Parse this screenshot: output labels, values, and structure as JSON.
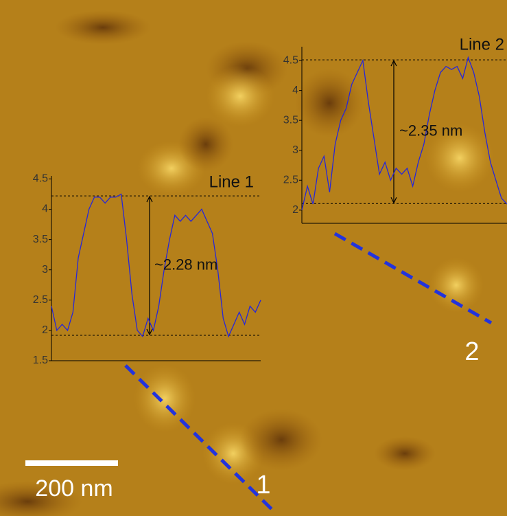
{
  "image": {
    "scale_bar": "200 nm",
    "line_labels": [
      "1",
      "2"
    ]
  },
  "chart_data": [
    {
      "type": "line",
      "title": "Line 1",
      "annotation": "~2.28 nm",
      "color": "#2626d9",
      "ylim": [
        1.5,
        4.55
      ],
      "yticks": [
        1.5,
        2.0,
        2.5,
        3.0,
        3.5,
        4.0,
        4.5
      ],
      "hlines": [
        4.22,
        1.92
      ],
      "values": [
        2.4,
        2.0,
        2.1,
        2.0,
        2.3,
        3.2,
        3.6,
        4.0,
        4.2,
        4.2,
        4.1,
        4.2,
        4.2,
        4.25,
        3.5,
        2.6,
        2.0,
        1.9,
        2.2,
        2.0,
        2.4,
        3.0,
        3.5,
        3.9,
        3.8,
        3.9,
        3.8,
        3.9,
        4.0,
        3.8,
        3.6,
        3.0,
        2.2,
        1.9,
        2.1,
        2.3,
        2.1,
        2.4,
        2.3,
        2.5
      ]
    },
    {
      "type": "line",
      "title": "Line 2",
      "annotation": "~2.35 nm",
      "color": "#2626d9",
      "ylim": [
        1.78,
        4.73
      ],
      "yticks": [
        2.0,
        2.5,
        3.0,
        3.5,
        4.0,
        4.5
      ],
      "hlines": [
        4.51,
        2.11
      ],
      "values": [
        2.0,
        2.4,
        2.1,
        2.7,
        2.9,
        2.3,
        3.1,
        3.5,
        3.7,
        4.1,
        4.3,
        4.5,
        3.8,
        3.2,
        2.6,
        2.8,
        2.5,
        2.7,
        2.6,
        2.7,
        2.4,
        2.8,
        3.1,
        3.6,
        4.0,
        4.3,
        4.4,
        4.35,
        4.4,
        4.2,
        4.55,
        4.3,
        3.9,
        3.3,
        2.8,
        2.5,
        2.2,
        2.1
      ]
    }
  ]
}
